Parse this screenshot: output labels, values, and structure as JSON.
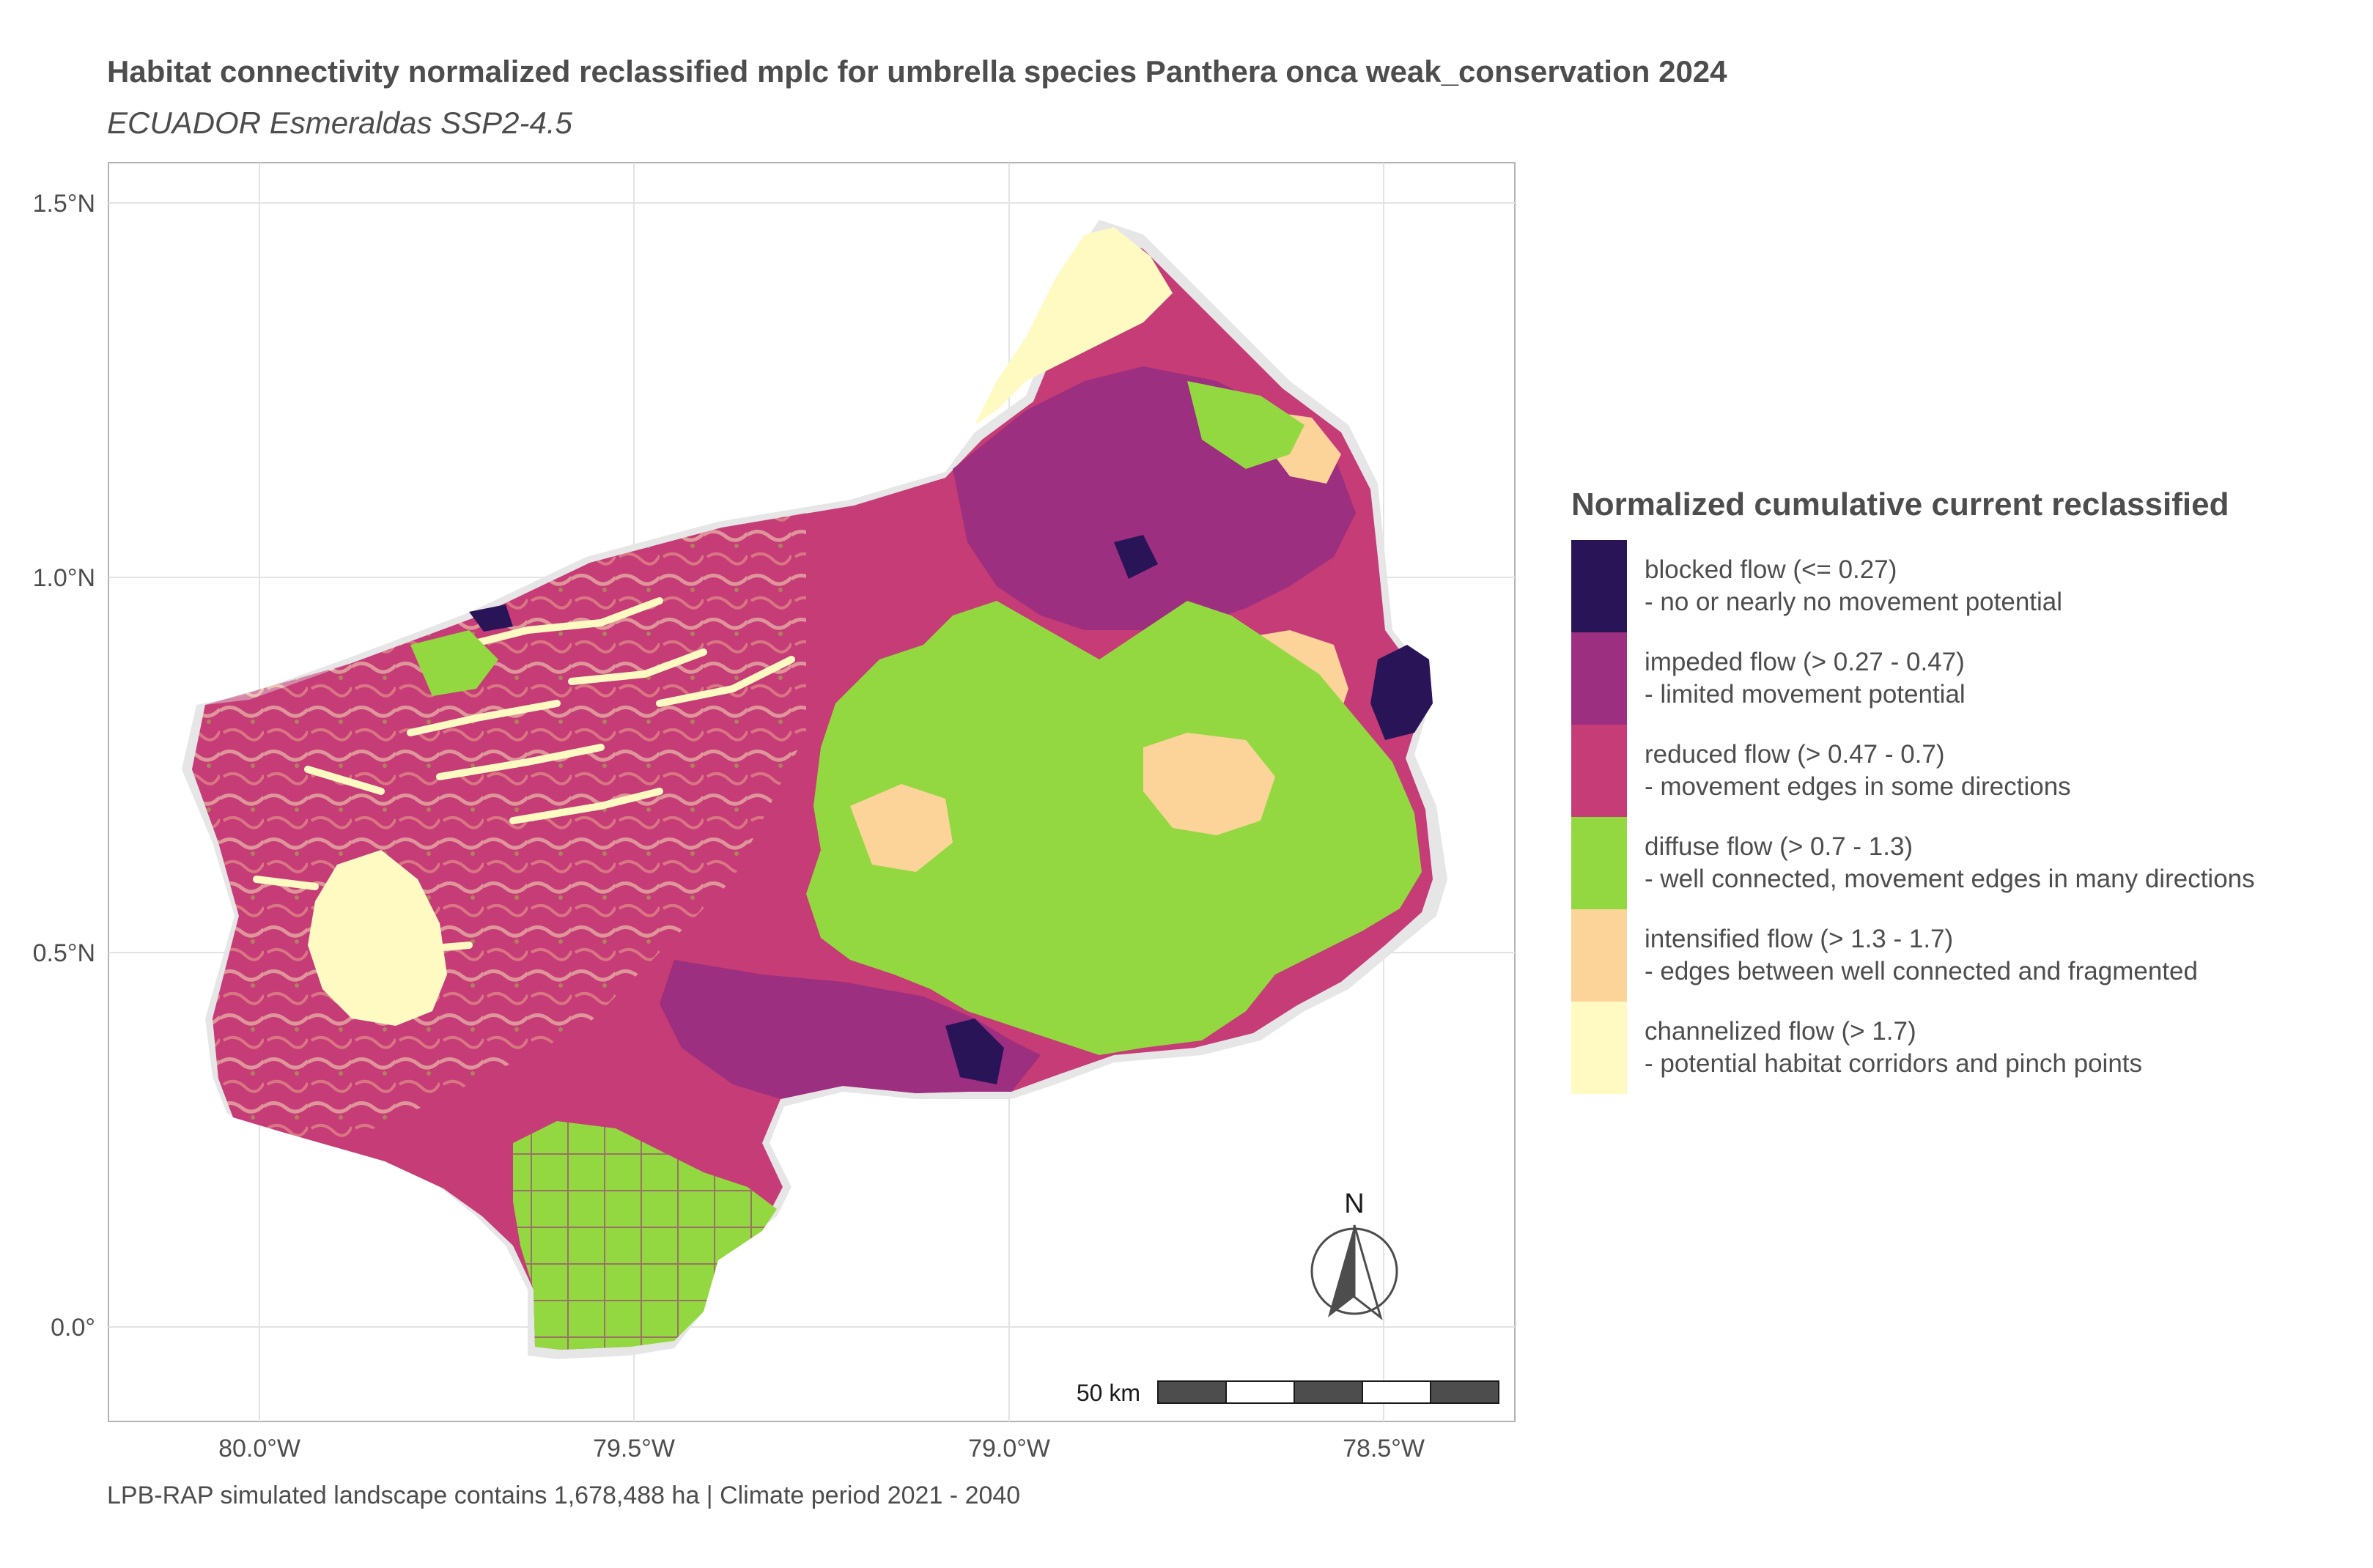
{
  "title": "Habitat connectivity normalized reclassified mplc for umbrella species Panthera onca weak_conservation 2024",
  "subtitle": "ECUADOR Esmeraldas SSP2-4.5",
  "caption": "LPB-RAP simulated landscape contains 1,678,488 ha | Climate period 2021 - 2040",
  "axes": {
    "y_ticks": [
      "1.5°N",
      "1.0°N",
      "0.5°N",
      "0.0°"
    ],
    "x_ticks": [
      "80.0°W",
      "79.5°W",
      "79.0°W",
      "78.5°W"
    ]
  },
  "north_arrow": {
    "label": "N"
  },
  "scale_bar": {
    "label": "50 km"
  },
  "legend": {
    "title": "Normalized cumulative current reclassified",
    "items": [
      {
        "line1": "blocked flow (<= 0.27)",
        "line2": "- no or nearly no movement potential",
        "color": "#2a1458"
      },
      {
        "line1": "impeded flow (> 0.27 - 0.47)",
        "line2": "- limited movement potential",
        "color": "#9c2f7f"
      },
      {
        "line1": "reduced flow (> 0.47 - 0.7)",
        "line2": "- movement edges in some directions",
        "color": "#c53c76"
      },
      {
        "line1": "diffuse flow (> 0.7 - 1.3)",
        "line2": "- well connected, movement edges in many directions",
        "color": "#93d841"
      },
      {
        "line1": "intensified flow (> 1.3 - 1.7)",
        "line2": "- edges between well connected and fragmented",
        "color": "#fcd49a"
      },
      {
        "line1": "channelized flow (> 1.7)",
        "line2": "- potential habitat corridors and pinch points",
        "color": "#fefac2"
      }
    ]
  }
}
